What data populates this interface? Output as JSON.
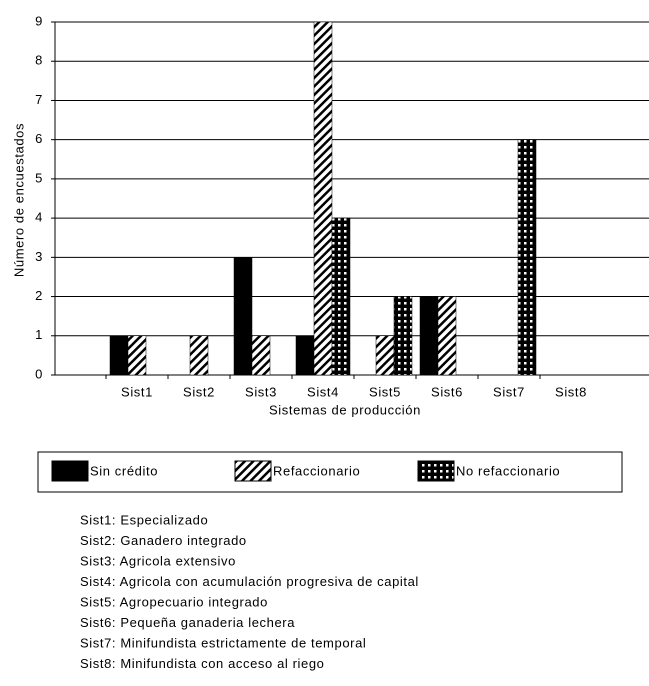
{
  "chart_data": {
    "type": "bar",
    "y_label": "Número de encuestados",
    "x_label": "Sistemas de producción",
    "categories": [
      "Sist1",
      "Sist2",
      "Sist3",
      "Sist4",
      "Sist5",
      "Sist6",
      "Sist7",
      "Sist8"
    ],
    "series": [
      {
        "name": "Sin crédito",
        "color": "#000000",
        "pattern": "solid",
        "values": [
          1,
          0,
          3,
          1,
          0,
          2,
          0,
          0
        ]
      },
      {
        "name": "Refaccionario",
        "color": "#000000",
        "pattern": "hatch",
        "values": [
          1,
          1,
          1,
          9,
          1,
          2,
          0,
          0
        ]
      },
      {
        "name": "No refaccionario",
        "color": "#000000",
        "pattern": "dots",
        "values": [
          0,
          0,
          0,
          4,
          2,
          0,
          6,
          0
        ]
      }
    ],
    "ylim": [
      0,
      9
    ],
    "yticks": [
      0,
      1,
      2,
      3,
      4,
      5,
      6,
      7,
      8,
      9
    ],
    "grid": true,
    "legend": "bottom",
    "notes": [
      "Sist1: Especializado",
      "Sist2: Ganadero integrado",
      "Sist3: Agricola extensivo",
      "Sist4: Agricola con acumulación progresiva de capital",
      "Sist5: Agropecuario integrado",
      "Sist6: Pequeña ganaderia lechera",
      "Sist7: Minifundista estrictamente de temporal",
      "Sist8: Minifundista con acceso al riego"
    ]
  }
}
